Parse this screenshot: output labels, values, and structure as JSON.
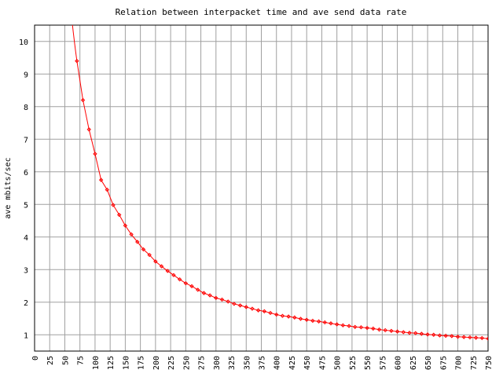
{
  "chart_data": {
    "type": "line",
    "title": "Relation between interpacket time and ave send data rate",
    "xlabel": "",
    "ylabel": "ave mbits/sec",
    "xlim": [
      0,
      750
    ],
    "ylim": [
      0.5,
      10.5
    ],
    "xticks": [
      0,
      25,
      50,
      75,
      100,
      125,
      150,
      175,
      200,
      225,
      250,
      275,
      300,
      325,
      350,
      375,
      400,
      425,
      450,
      475,
      500,
      525,
      550,
      575,
      600,
      625,
      650,
      675,
      700,
      725,
      750
    ],
    "yticks": [
      1,
      2,
      3,
      4,
      5,
      6,
      7,
      8,
      9,
      10
    ],
    "grid": true,
    "colors": {
      "series": "#ff0000",
      "grid": "#a0a0a0",
      "frame": "#000000"
    },
    "series": [
      {
        "x": [
          70,
          80,
          90,
          100,
          110,
          120,
          130,
          140,
          150,
          160,
          170,
          180,
          190,
          200,
          210,
          220,
          230,
          240,
          250,
          260,
          270,
          280,
          290,
          300,
          310,
          320,
          330,
          340,
          350,
          360,
          370,
          380,
          390,
          400,
          410,
          420,
          430,
          440,
          450,
          460,
          470,
          480,
          490,
          500,
          510,
          520,
          530,
          540,
          550,
          560,
          570,
          580,
          590,
          600,
          610,
          620,
          630,
          640,
          650,
          660,
          670,
          680,
          690,
          700,
          710,
          720,
          730,
          740,
          750
        ],
        "y": [
          9.4,
          8.2,
          7.3,
          6.55,
          5.75,
          5.45,
          4.98,
          4.68,
          4.35,
          4.08,
          3.85,
          3.62,
          3.45,
          3.25,
          3.1,
          2.96,
          2.83,
          2.7,
          2.58,
          2.49,
          2.38,
          2.28,
          2.21,
          2.13,
          2.08,
          2.02,
          1.95,
          1.9,
          1.85,
          1.8,
          1.75,
          1.72,
          1.67,
          1.62,
          1.58,
          1.56,
          1.53,
          1.49,
          1.46,
          1.43,
          1.41,
          1.38,
          1.35,
          1.32,
          1.29,
          1.27,
          1.24,
          1.23,
          1.21,
          1.19,
          1.16,
          1.14,
          1.12,
          1.1,
          1.08,
          1.06,
          1.05,
          1.03,
          1.01,
          1.0,
          0.98,
          0.97,
          0.96,
          0.94,
          0.93,
          0.92,
          0.91,
          0.9,
          0.88
        ]
      }
    ]
  }
}
